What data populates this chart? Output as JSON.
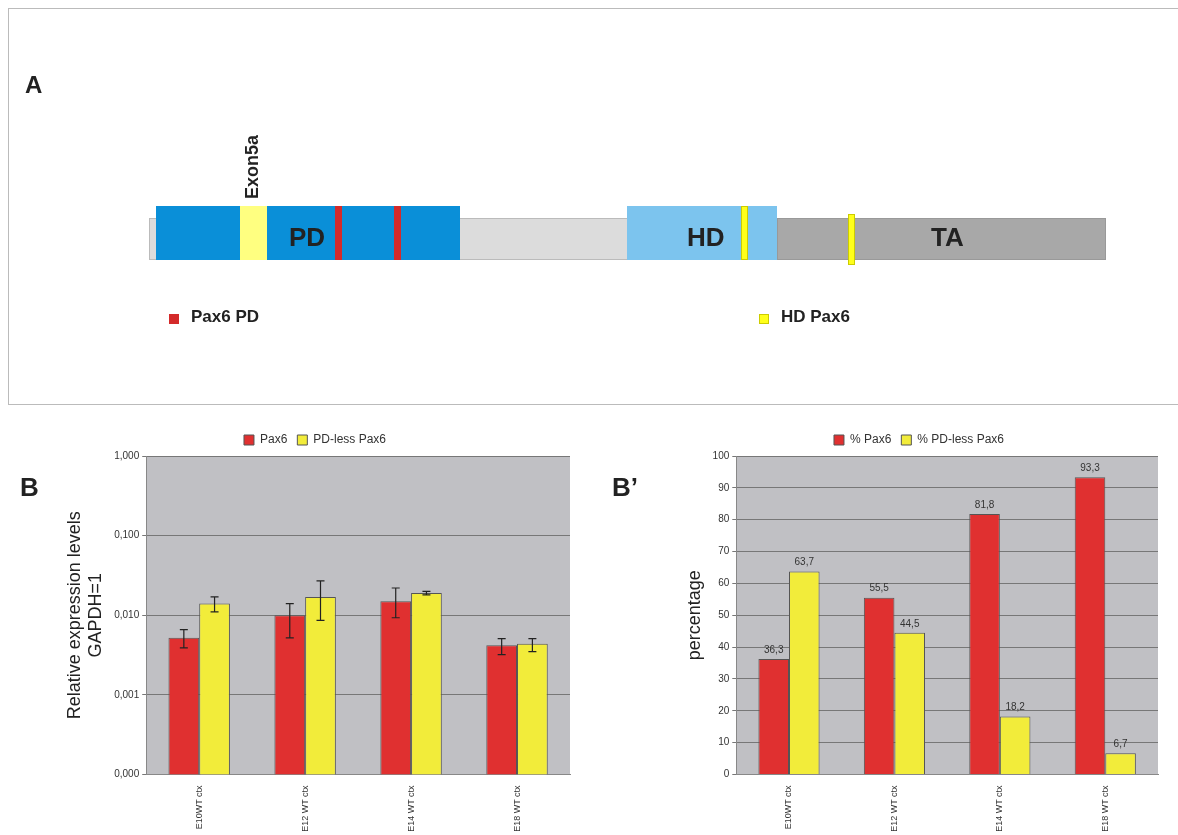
{
  "chart_data": [
    {
      "type": "other",
      "annotations": [
        "A",
        "Exon5a",
        "PD",
        "HD",
        "TA",
        "Pax6 PD",
        "HD Pax6"
      ]
    },
    {
      "type": "bar",
      "annotations": [
        "B"
      ],
      "ylabel": "Relative expression levels GAPDH=1",
      "log": "y",
      "categories": [
        "E10WT ctx",
        "E12 WT ctx",
        "E14 WT ctx",
        "E18 WT ctx"
      ],
      "series": [
        {
          "name": "Pax6",
          "color": "#e03030",
          "values": [
            0.0052,
            0.01,
            0.015,
            0.0042
          ],
          "errors": [
            [
              0.0039,
              0.0066
            ],
            [
              0.0052,
              0.014
            ],
            [
              0.0093,
              0.022
            ],
            [
              0.0032,
              0.0051
            ]
          ]
        },
        {
          "name": "PD-less Pax6",
          "color": "#f2ec3a",
          "values": [
            0.014,
            0.017,
            0.019,
            0.0044
          ],
          "errors": [
            [
              0.011,
              0.017
            ],
            [
              0.0086,
              0.027
            ],
            [
              0.018,
              0.02
            ],
            [
              0.0035,
              0.0051
            ]
          ]
        }
      ],
      "ylim": [
        0.0001,
        1
      ],
      "yticks": [
        {
          "value": 0.0001,
          "label": "0,000"
        },
        {
          "value": 0.001,
          "label": "0,001"
        },
        {
          "value": 0.01,
          "label": "0,010"
        },
        {
          "value": 0.1,
          "label": "0,100"
        },
        {
          "value": 1,
          "label": "1,000"
        }
      ],
      "grid": "y",
      "legend": "top"
    },
    {
      "type": "bar",
      "annotations": [
        "B’"
      ],
      "ylabel": "percentage",
      "categories": [
        "E10WT ctx",
        "E12 WT ctx",
        "E14 WT ctx",
        "E18 WT ctx"
      ],
      "series": [
        {
          "name": "% Pax6",
          "color": "#e03030",
          "values": [
            36.3,
            55.5,
            81.8,
            93.3
          ],
          "value_labels": [
            "36,3",
            "55,5",
            "81,8",
            "93,3"
          ]
        },
        {
          "name": "% PD-less Pax6",
          "color": "#f2ec3a",
          "values": [
            63.7,
            44.5,
            18.2,
            6.7
          ],
          "value_labels": [
            "63,7",
            "44,5",
            "18,2",
            "6,7"
          ]
        }
      ],
      "ylim": [
        0,
        100
      ],
      "yticks": [
        0,
        10,
        20,
        30,
        40,
        50,
        60,
        70,
        80,
        90,
        100
      ],
      "grid": "y",
      "legend": "top"
    }
  ]
}
